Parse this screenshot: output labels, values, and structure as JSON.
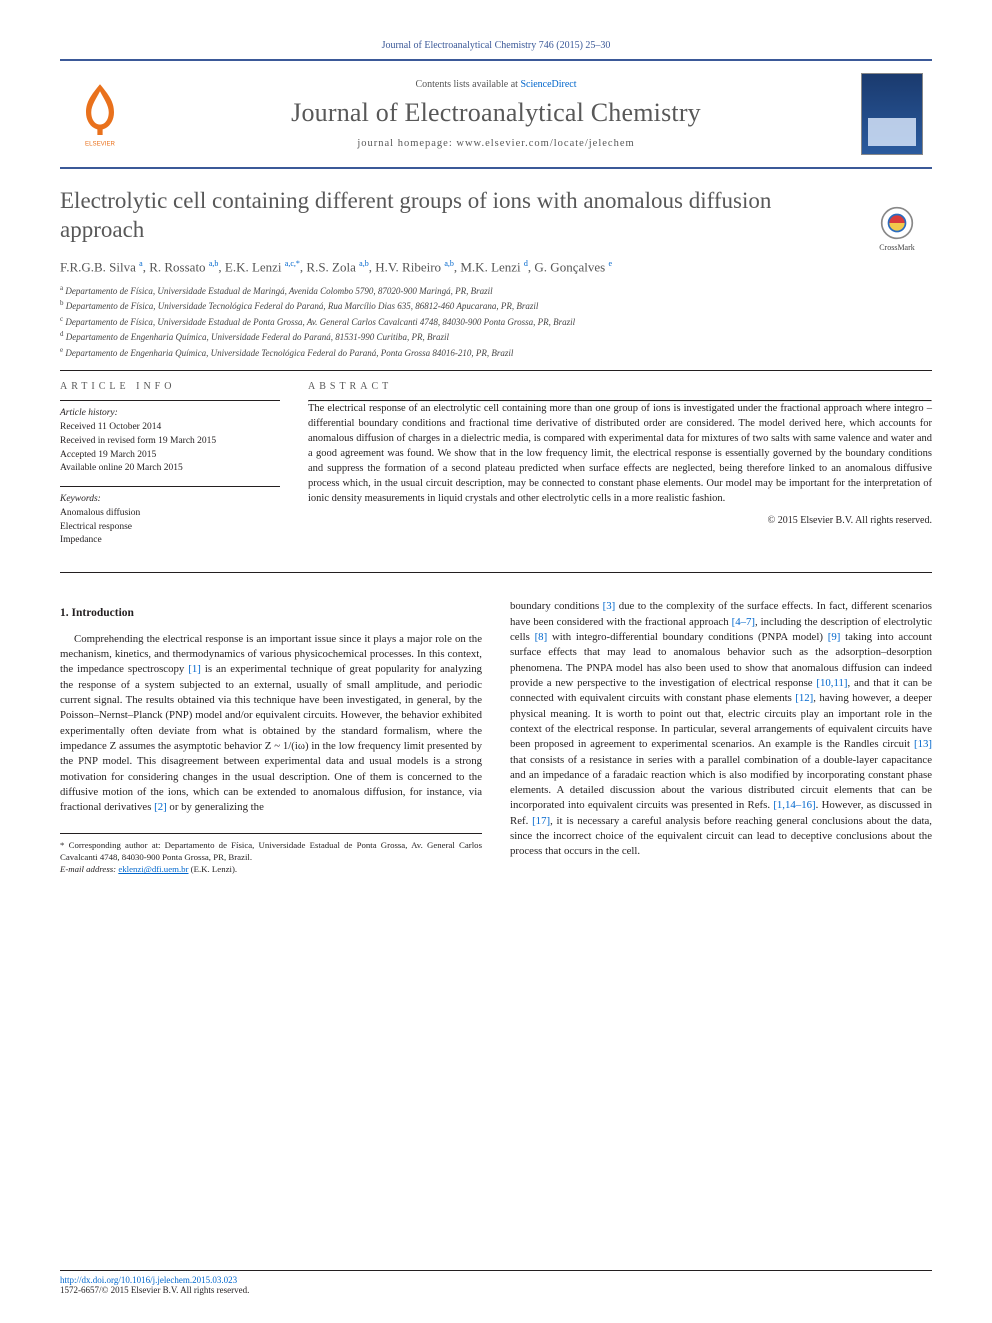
{
  "citation_line": "Journal of Electroanalytical Chemistry 746 (2015) 25–30",
  "header": {
    "contents_pre": "Contents lists available at ",
    "contents_link": "ScienceDirect",
    "journal_name": "Journal of Electroanalytical Chemistry",
    "homepage_label": "journal homepage: www.elsevier.com/locate/jelechem",
    "publisher_logo_label": "ELSEVIER"
  },
  "crossmark_label": "CrossMark",
  "title": "Electrolytic cell containing different groups of ions with anomalous diffusion approach",
  "authors_html": "F.R.G.B. Silva <sup>a</sup>, R. Rossato <sup>a,b</sup>, E.K. Lenzi <sup>a,c,*</sup>, R.S. Zola <sup>a,b</sup>, H.V. Ribeiro <sup>a,b</sup>, M.K. Lenzi <sup>d</sup>, G. Gonçalves <sup>e</sup>",
  "affiliations": [
    "a Departamento de Física, Universidade Estadual de Maringá, Avenida Colombo 5790, 87020-900 Maringá, PR, Brazil",
    "b Departamento de Física, Universidade Tecnológica Federal do Paraná, Rua Marcílio Dias 635, 86812-460 Apucarana, PR, Brazil",
    "c Departamento de Física, Universidade Estadual de Ponta Grossa, Av. General Carlos Cavalcanti 4748, 84030-900 Ponta Grossa, PR, Brazil",
    "d Departamento de Engenharia Química, Universidade Federal do Paraná, 81531-990 Curitiba, PR, Brazil",
    "e Departamento de Engenharia Química, Universidade Tecnológica Federal do Paraná, Ponta Grossa 84016-210, PR, Brazil"
  ],
  "info": {
    "label": "article info",
    "history_label": "Article history:",
    "history": [
      "Received 11 October 2014",
      "Received in revised form 19 March 2015",
      "Accepted 19 March 2015",
      "Available online 20 March 2015"
    ],
    "keywords_label": "Keywords:",
    "keywords": [
      "Anomalous diffusion",
      "Electrical response",
      "Impedance"
    ]
  },
  "abstract": {
    "label": "abstract",
    "text": "The electrical response of an electrolytic cell containing more than one group of ions is investigated under the fractional approach where integro – differential boundary conditions and fractional time derivative of distributed order are considered. The model derived here, which accounts for anomalous diffusion of charges in a dielectric media, is compared with experimental data for mixtures of two salts with same valence and water and a good agreement was found. We show that in the low frequency limit, the electrical response is essentially governed by the boundary conditions and suppress the formation of a second plateau predicted when surface effects are neglected, being therefore linked to an anomalous diffusive process which, in the usual circuit description, may be connected to constant phase elements. Our model may be important for the interpretation of ionic density measurements in liquid crystals and other electrolytic cells in a more realistic fashion.",
    "copyright": "© 2015 Elsevier B.V. All rights reserved."
  },
  "body": {
    "section_title": "1. Introduction",
    "para1": "Comprehending the electrical response is an important issue since it plays a major role on the mechanism, kinetics, and thermodynamics of various physicochemical processes. In this context, the impedance spectroscopy [1] is an experimental technique of great popularity for analyzing the response of a system subjected to an external, usually of small amplitude, and periodic current signal. The results obtained via this technique have been investigated, in general, by the Poisson–Nernst–Planck (PNP) model and/or equivalent circuits. However, the behavior exhibited experimentally often deviate from what is obtained by the standard formalism, where the impedance Z assumes the asymptotic behavior Z ~ 1/(iω) in the low frequency limit presented by the PNP model. This disagreement between experimental data and usual models is a strong motivation for considering changes in the usual description. One of them is concerned to the diffusive motion of the ions, which can be extended to anomalous diffusion, for instance, via fractional derivatives [2] or by generalizing the",
    "para2": "boundary conditions [3] due to the complexity of the surface effects. In fact, different scenarios have been considered with the fractional approach [4–7], including the description of electrolytic cells [8] with integro-differential boundary conditions (PNPA model) [9] taking into account surface effects that may lead to anomalous behavior such as the adsorption–desorption phenomena. The PNPA model has also been used to show that anomalous diffusion can indeed provide a new perspective to the investigation of electrical response [10,11], and that it can be connected with equivalent circuits with constant phase elements [12], having however, a deeper physical meaning. It is worth to point out that, electric circuits play an important role in the context of the electrical response. In particular, several arrangements of equivalent circuits have been proposed in agreement to experimental scenarios. An example is the Randles circuit [13] that consists of a resistance in series with a parallel combination of a double-layer capacitance and an impedance of a faradaic reaction which is also modified by incorporating constant phase elements. A detailed discussion about the various distributed circuit elements that can be incorporated into equivalent circuits was presented in Refs. [1,14–16]. However, as discussed in Ref. [17], it is necessary a careful analysis before reaching general conclusions about the data, since the incorrect choice of the equivalent circuit can lead to deceptive conclusions about the process that occurs in the cell."
  },
  "footnote": {
    "corr": "* Corresponding author at: Departamento de Física, Universidade Estadual de Ponta Grossa, Av. General Carlos Cavalcanti 4748, 84030-900 Ponta Grossa, PR, Brazil.",
    "email_label": "E-mail address:",
    "email": "eklenzi@dfi.uem.br",
    "email_paren": " (E.K. Lenzi)."
  },
  "bottom": {
    "doi": "http://dx.doi.org/10.1016/j.jelechem.2015.03.023",
    "issn_line": "1572-6657/© 2015 Elsevier B.V. All rights reserved."
  },
  "colors": {
    "link": "#0066cc",
    "rule": "#3b5998",
    "orange": "#e9711c",
    "text": "#231f20",
    "grey_heading": "#585858"
  }
}
